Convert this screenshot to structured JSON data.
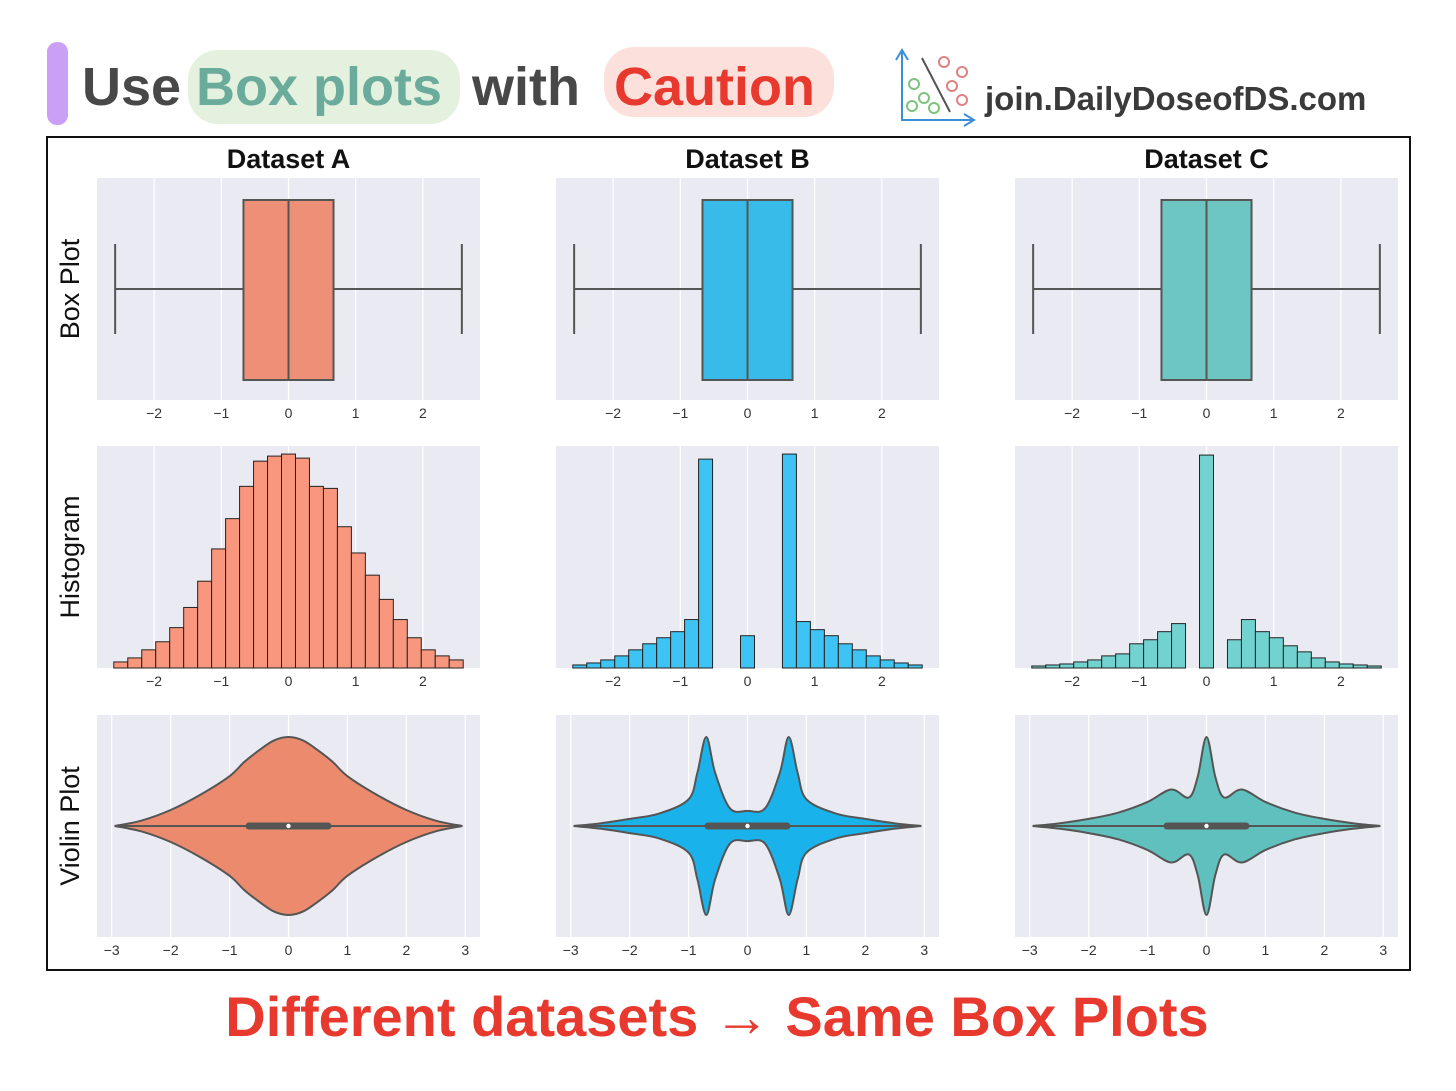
{
  "header": {
    "title_parts": [
      "Use",
      "Box plots",
      "with",
      "Caution"
    ],
    "site": "join.DailyDoseofDS.com"
  },
  "footer": "Different datasets → Same Box Plots",
  "chart_data": [
    {
      "type": "box",
      "title": "Dataset A",
      "ylabel": "Box Plot",
      "color": "#ee9077",
      "whislo": -2.58,
      "q1": -0.67,
      "median": 0,
      "q3": 0.67,
      "whishi": 2.58,
      "xlim": [
        -2.85,
        2.85
      ],
      "xticks": [
        {
          "value": -2,
          "label": "−2"
        },
        {
          "value": -1,
          "label": "−1"
        },
        0,
        1,
        2
      ],
      "grid": true
    },
    {
      "type": "box",
      "title": "Dataset B",
      "color": "#38bbe8",
      "whislo": -2.58,
      "q1": -0.67,
      "median": 0,
      "q3": 0.67,
      "whishi": 2.58,
      "xlim": [
        -2.85,
        2.85
      ],
      "xticks": [
        {
          "value": -2,
          "label": "−2"
        },
        {
          "value": -1,
          "label": "−1"
        },
        0,
        1,
        2
      ],
      "grid": true
    },
    {
      "type": "box",
      "title": "Dataset C",
      "color": "#6ec6c3",
      "whislo": -2.58,
      "q1": -0.67,
      "median": 0,
      "q3": 0.67,
      "whishi": 2.58,
      "xlim": [
        -2.85,
        2.85
      ],
      "xticks": [
        {
          "value": -2,
          "label": "−2"
        },
        {
          "value": -1,
          "label": "−1"
        },
        0,
        1,
        2
      ],
      "grid": true
    },
    {
      "type": "histogram",
      "ylabel": "Histogram",
      "color": "#f9977e",
      "bins": [
        -2.6,
        -2.392,
        -2.184,
        -1.976,
        -1.768,
        -1.56,
        -1.352,
        -1.144,
        -0.936,
        -0.728,
        -0.52,
        -0.312,
        -0.104,
        0.104,
        0.312,
        0.52,
        0.728,
        0.936,
        1.144,
        1.352,
        1.56,
        1.768,
        1.976,
        2.184,
        2.392,
        2.6
      ],
      "values": [
        6,
        10,
        18,
        26,
        40,
        60,
        86,
        118,
        148,
        180,
        205,
        210,
        212,
        208,
        180,
        178,
        140,
        114,
        92,
        68,
        48,
        30,
        18,
        12,
        8
      ],
      "xlim": [
        -2.85,
        2.85
      ],
      "ylim": [
        0,
        220
      ],
      "xticks": [
        {
          "value": -2,
          "label": "−2"
        },
        {
          "value": -1,
          "label": "−1"
        },
        0,
        1,
        2
      ],
      "grid": true
    },
    {
      "type": "histogram",
      "color": "#3ec4f4",
      "bins": [
        -2.6,
        -2.392,
        -2.184,
        -1.976,
        -1.768,
        -1.56,
        -1.352,
        -1.144,
        -0.936,
        -0.728,
        -0.52,
        -0.312,
        -0.104,
        0.104,
        0.312,
        0.52,
        0.728,
        0.936,
        1.144,
        1.352,
        1.56,
        1.768,
        1.976,
        2.184,
        2.392,
        2.6
      ],
      "values": [
        3,
        5,
        8,
        12,
        18,
        24,
        30,
        36,
        48,
        207,
        0,
        0,
        32,
        0,
        0,
        212,
        46,
        38,
        32,
        24,
        18,
        12,
        8,
        5,
        3
      ],
      "xlim": [
        -2.85,
        2.85
      ],
      "ylim": [
        0,
        220
      ],
      "xticks": [
        {
          "value": -2,
          "label": "−2"
        },
        {
          "value": -1,
          "label": "−1"
        },
        0,
        1,
        2
      ],
      "grid": true
    },
    {
      "type": "histogram",
      "color": "#71d2cf",
      "bins": [
        -2.6,
        -2.392,
        -2.184,
        -1.976,
        -1.768,
        -1.56,
        -1.352,
        -1.144,
        -0.936,
        -0.728,
        -0.52,
        -0.312,
        -0.104,
        0.104,
        0.312,
        0.52,
        0.728,
        0.936,
        1.144,
        1.352,
        1.56,
        1.768,
        1.976,
        2.184,
        2.392,
        2.6
      ],
      "values": [
        2,
        3,
        4,
        6,
        8,
        12,
        14,
        24,
        28,
        36,
        44,
        0,
        211,
        0,
        28,
        48,
        36,
        30,
        22,
        16,
        10,
        6,
        4,
        3,
        2
      ],
      "xlim": [
        -2.85,
        2.85
      ],
      "ylim": [
        0,
        220
      ],
      "xticks": [
        {
          "value": -2,
          "label": "−2"
        },
        {
          "value": -1,
          "label": "−1"
        },
        0,
        1,
        2
      ],
      "grid": true
    },
    {
      "type": "violin",
      "ylabel": "Violin Plot",
      "color": "#ec8a6e",
      "x": [
        -2.95,
        -2.5,
        -2.0,
        -1.5,
        -1.0,
        -0.75,
        -0.5,
        -0.25,
        0,
        0.25,
        0.5,
        0.75,
        1.0,
        1.5,
        2.0,
        2.5,
        2.95
      ],
      "values": [
        0,
        0.06,
        0.18,
        0.35,
        0.56,
        0.72,
        0.85,
        0.96,
        1.0,
        0.96,
        0.85,
        0.72,
        0.56,
        0.35,
        0.18,
        0.06,
        0
      ],
      "q1": -0.67,
      "median": 0,
      "q3": 0.67,
      "xlim": [
        -3.25,
        3.25
      ],
      "xticks": [
        {
          "value": -3,
          "label": "−3"
        },
        {
          "value": -2,
          "label": "−2"
        },
        {
          "value": -1,
          "label": "−1"
        },
        0,
        1,
        2,
        3
      ],
      "grid": true
    },
    {
      "type": "violin",
      "color": "#1ab2ea",
      "x": [
        -2.95,
        -2.5,
        -2.0,
        -1.5,
        -1.0,
        -0.85,
        -0.7,
        -0.55,
        -0.3,
        0,
        0.3,
        0.55,
        0.7,
        0.85,
        1.0,
        1.5,
        2.0,
        2.5,
        2.95
      ],
      "values": [
        0,
        0.03,
        0.08,
        0.14,
        0.3,
        0.6,
        1.0,
        0.6,
        0.2,
        0.17,
        0.2,
        0.6,
        1.0,
        0.6,
        0.3,
        0.14,
        0.08,
        0.03,
        0
      ],
      "q1": -0.67,
      "median": 0,
      "q3": 0.67,
      "xlim": [
        -3.25,
        3.25
      ],
      "xticks": [
        {
          "value": -3,
          "label": "−3"
        },
        {
          "value": -2,
          "label": "−2"
        },
        {
          "value": -1,
          "label": "−1"
        },
        0,
        1,
        2,
        3
      ],
      "grid": true
    },
    {
      "type": "violin",
      "color": "#5fc0bd",
      "x": [
        -2.95,
        -2.5,
        -2.0,
        -1.5,
        -1.0,
        -0.6,
        -0.3,
        -0.15,
        0,
        0.15,
        0.3,
        0.6,
        1.0,
        1.5,
        2.0,
        2.5,
        2.95
      ],
      "values": [
        0,
        0.03,
        0.08,
        0.15,
        0.27,
        0.41,
        0.32,
        0.55,
        1.0,
        0.55,
        0.32,
        0.41,
        0.27,
        0.15,
        0.08,
        0.03,
        0
      ],
      "q1": -0.67,
      "median": 0,
      "q3": 0.67,
      "xlim": [
        -3.25,
        3.25
      ],
      "xticks": [
        {
          "value": -3,
          "label": "−3"
        },
        {
          "value": -2,
          "label": "−2"
        },
        {
          "value": -1,
          "label": "−1"
        },
        0,
        1,
        2,
        3
      ],
      "grid": true
    }
  ]
}
